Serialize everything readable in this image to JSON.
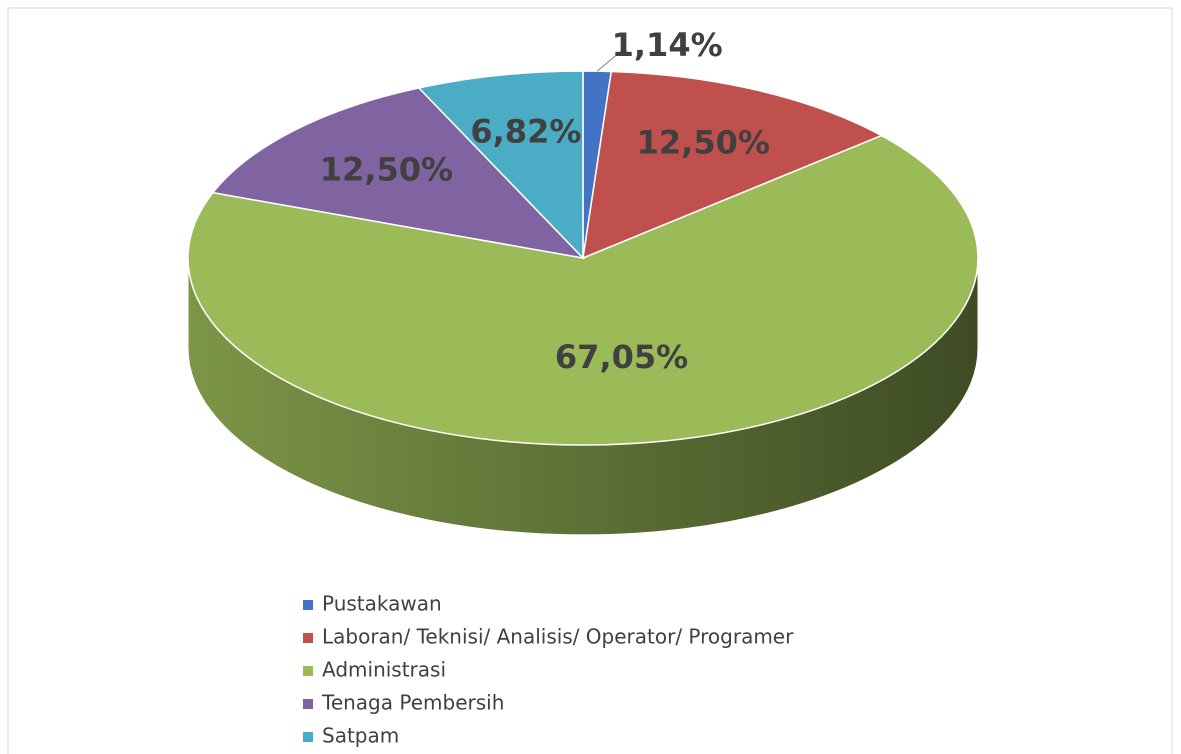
{
  "chart_data": {
    "type": "pie3d",
    "categories": [
      "Pustakawan",
      "Laboran/ Teknisi/ Analisis/ Operator/ Programer",
      "Administrasi",
      "Tenaga Pembersih",
      "Satpam"
    ],
    "values": [
      1.14,
      12.5,
      67.05,
      12.5,
      6.82
    ],
    "value_labels": [
      "1,14%",
      "12,50%",
      "67,05%",
      "12,50%",
      "6,82%"
    ],
    "colors": [
      "#4472c4",
      "#c0504d",
      "#9bbb59",
      "#8064a2",
      "#4bacc6"
    ],
    "legend": "bottom"
  }
}
